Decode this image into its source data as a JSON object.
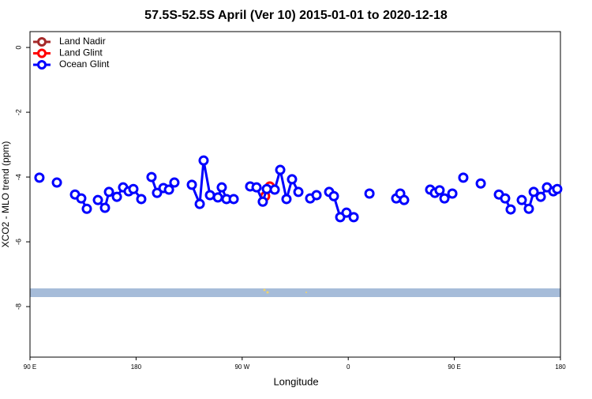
{
  "chart_data": {
    "type": "line",
    "title": "57.5S-52.5S April (Ver 10)   2015-01-01 to 2020-12-18",
    "x_label": "Longitude",
    "y_label": "XCO2 - MLO trend (ppm)",
    "xlim": [
      90,
      540
    ],
    "xticks": [
      {
        "value": 90,
        "label": "90 E"
      },
      180,
      {
        "value": 270,
        "label": "90 W"
      },
      {
        "value": 360,
        "label": "0"
      },
      {
        "value": 450,
        "label": "90 E"
      },
      {
        "value": 540,
        "label": "180"
      }
    ],
    "ylim": [
      -9.56,
      0.49
    ],
    "yticks": [
      0,
      -2,
      -4,
      -6,
      -8
    ],
    "legend": "upper left",
    "series": [
      {
        "name": "Land Nadir",
        "color": "#a52a2a",
        "x": [],
        "values": []
      },
      {
        "name": "Land Glint",
        "color": "#ff0000",
        "x": [
          289.5,
          293.5
        ],
        "values": [
          -4.59,
          -4.29
        ]
      },
      {
        "name": "Ocean Glint",
        "color": "#0000ff",
        "x": [
          98,
          null,
          112.8,
          null,
          128.2,
          133.5,
          138.2,
          null,
          147.6,
          153.6,
          157,
          163.7,
          169,
          173.7,
          177.7,
          184.4,
          null,
          193.1,
          197.8,
          203.2,
          207.9,
          212.5,
          null,
          227.3,
          234,
          237.3,
          242.7,
          249.4,
          252.7,
          256.7,
          262.8,
          null,
          276.8,
          282.2,
          287.5,
          290.9,
          297.6,
          302.3,
          307.6,
          312.3,
          317.7,
          null,
          327.7,
          333.1,
          null,
          343.8,
          347.8,
          353.2,
          358.5,
          364.6,
          null,
          378,
          null,
          400.7,
          404.1,
          407.4,
          null,
          429.5,
          433.5,
          437.5,
          441.6,
          448.3,
          null,
          457.6,
          null,
          472.4,
          null,
          487.8,
          493.1,
          497.8,
          null,
          507.2,
          513.2,
          517.3,
          523.3,
          528.6,
          534,
          537.3
        ],
        "values": [
          -4.02,
          null,
          -4.17,
          null,
          -4.54,
          -4.66,
          -4.98,
          null,
          -4.71,
          -4.95,
          -4.46,
          -4.61,
          -4.32,
          -4.44,
          -4.37,
          -4.68,
          null,
          -4.0,
          -4.49,
          -4.34,
          -4.39,
          -4.17,
          null,
          -4.24,
          -4.83,
          -3.49,
          -4.56,
          -4.63,
          -4.32,
          -4.68,
          -4.68,
          null,
          -4.29,
          -4.32,
          -4.76,
          -4.37,
          -4.39,
          -3.78,
          -4.68,
          -4.07,
          -4.46,
          null,
          -4.66,
          -4.56,
          null,
          -4.46,
          -4.59,
          -5.24,
          -5.1,
          -5.24,
          null,
          -4.51,
          null,
          -4.66,
          -4.51,
          -4.71,
          null,
          -4.39,
          -4.49,
          -4.41,
          -4.66,
          -4.51,
          null,
          -4.02,
          null,
          -4.2,
          null,
          -4.54,
          -4.66,
          -5.0,
          null,
          -4.71,
          -4.98,
          -4.46,
          -4.61,
          -4.32,
          -4.44,
          -4.37
        ]
      }
    ]
  }
}
